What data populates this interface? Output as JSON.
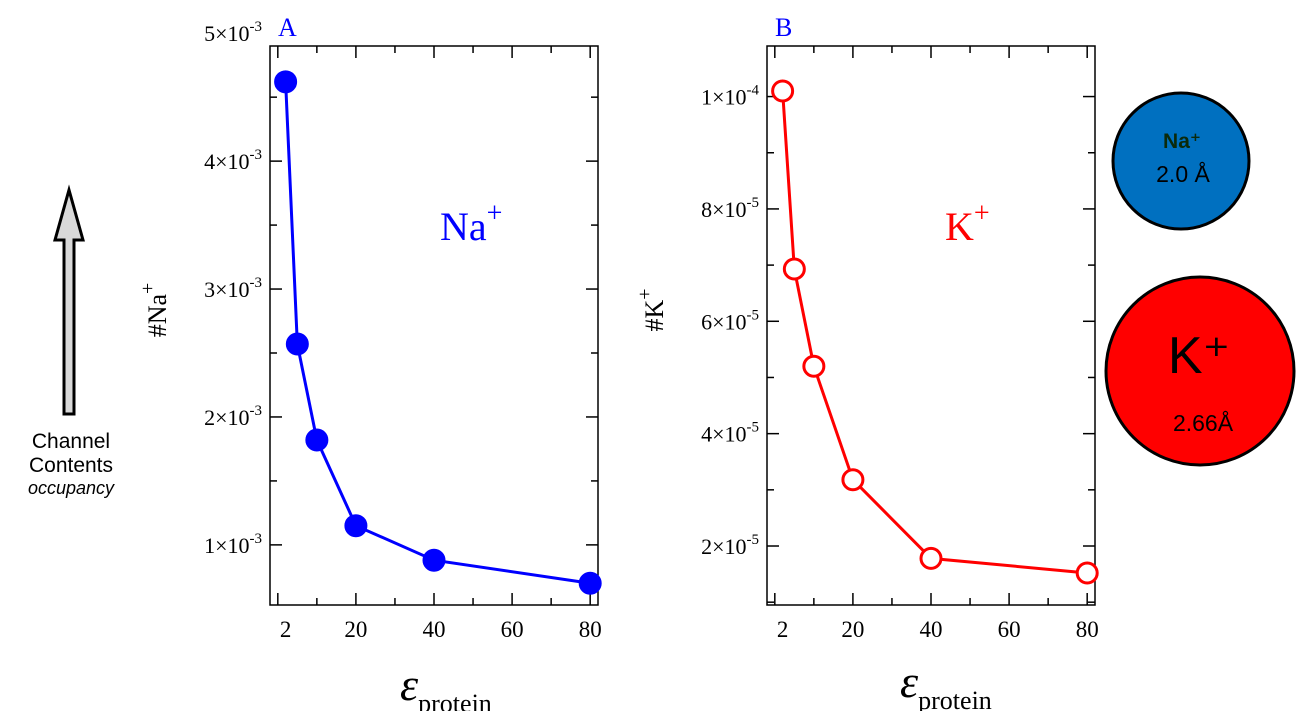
{
  "side_annotation": {
    "line1": "Channel",
    "line2": "Contents",
    "line3": "occupancy",
    "arrow_icon": "up-arrow-icon"
  },
  "ion_circles": [
    {
      "ion": "Na⁺",
      "radius_text": "2.0 Å",
      "color": "#0070C0"
    },
    {
      "ion": "K⁺",
      "radius_text": "2.66Å",
      "color": "#FF0000"
    }
  ],
  "chart_data": [
    {
      "type": "line",
      "panel_label": "A",
      "annotation": {
        "base": "Na",
        "sup": "+"
      },
      "ylabel": {
        "prefix": "#Na",
        "sup": "+"
      },
      "xlabel": {
        "base": "ε",
        "sub": "protein"
      },
      "x": [
        2,
        5,
        10,
        20,
        40,
        80
      ],
      "y": [
        0.00462,
        0.00257,
        0.00182,
        0.00115,
        0.00088,
        0.0007
      ],
      "xlim": [
        -2,
        82
      ],
      "ylim": [
        0.00053,
        0.0049
      ],
      "xticks": [
        2,
        20,
        40,
        60,
        80
      ],
      "yticks": [
        {
          "value": 0.001,
          "mantissa": "1×10",
          "exp": "-3"
        },
        {
          "value": 0.002,
          "mantissa": "2×10",
          "exp": "-3"
        },
        {
          "value": 0.003,
          "mantissa": "3×10",
          "exp": "-3"
        },
        {
          "value": 0.004,
          "mantissa": "4×10",
          "exp": "-3"
        },
        {
          "value": 0.005,
          "mantissa": "5×10",
          "exp": "-3"
        }
      ],
      "color": "#0000FF",
      "marker": "filled-circle",
      "grid": false
    },
    {
      "type": "line",
      "panel_label": "B",
      "annotation": {
        "base": "K",
        "sup": "+"
      },
      "ylabel": {
        "prefix": "#K",
        "sup": "+"
      },
      "xlabel": {
        "base": "ε",
        "sub": "protein"
      },
      "x": [
        2,
        5,
        10,
        20,
        40,
        80
      ],
      "y": [
        0.000101,
        6.93e-05,
        5.2e-05,
        3.18e-05,
        1.78e-05,
        1.52e-05
      ],
      "xlim": [
        -2,
        82
      ],
      "ylim": [
        9.5e-06,
        0.000109
      ],
      "xticks": [
        2,
        20,
        40,
        60,
        80
      ],
      "yticks": [
        {
          "value": 2e-05,
          "mantissa": "2×10",
          "exp": "-5"
        },
        {
          "value": 4e-05,
          "mantissa": "4×10",
          "exp": "-5"
        },
        {
          "value": 6e-05,
          "mantissa": "6×10",
          "exp": "-5"
        },
        {
          "value": 8e-05,
          "mantissa": "8×10",
          "exp": "-5"
        },
        {
          "value": 0.0001,
          "mantissa": "1×10",
          "exp": "-4"
        }
      ],
      "color": "#FF0000",
      "marker": "open-circle",
      "grid": false
    }
  ]
}
